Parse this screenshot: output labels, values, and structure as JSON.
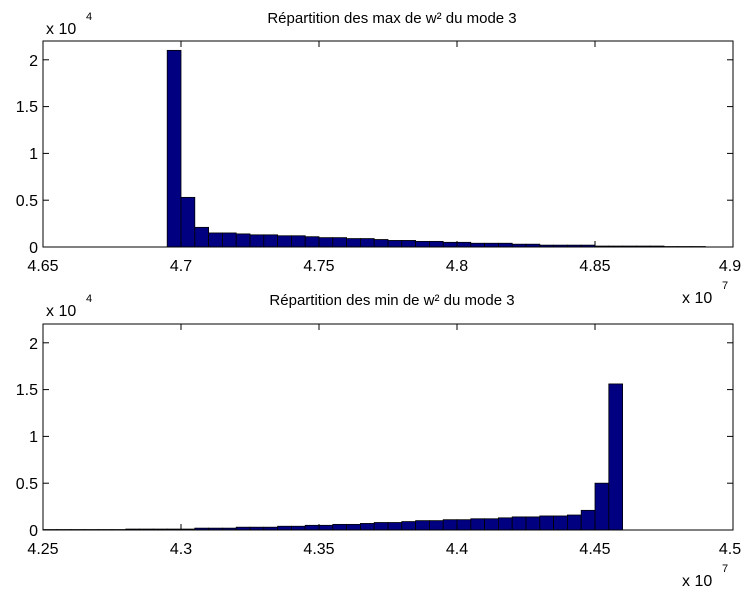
{
  "chart_data": [
    {
      "type": "bar",
      "title": "Répartition des max de w² du mode 3",
      "xlabel": "",
      "ylabel": "",
      "x_multiplier": "x 10",
      "x_exponent": "7",
      "y_multiplier": "x 10",
      "y_exponent": "4",
      "xlim": [
        4.65,
        4.9
      ],
      "ylim": [
        0,
        2.2
      ],
      "xticks": [
        "4.65",
        "4.7",
        "4.75",
        "4.8",
        "4.85",
        "4.9"
      ],
      "yticks": [
        "0",
        "0.5",
        "1",
        "1.5",
        "2"
      ],
      "grid": false,
      "color": "#000080",
      "bin_width": 0.005,
      "x": [
        4.6975,
        4.7025,
        4.7075,
        4.7125,
        4.7175,
        4.7225,
        4.7275,
        4.7325,
        4.7375,
        4.7425,
        4.7475,
        4.7525,
        4.7575,
        4.7625,
        4.7675,
        4.7725,
        4.7775,
        4.7825,
        4.7875,
        4.7925,
        4.7975,
        4.8025,
        4.8075,
        4.8125,
        4.8175,
        4.8225,
        4.8275,
        4.8325,
        4.8375,
        4.8425,
        4.8475,
        4.8525,
        4.8575,
        4.8625,
        4.8675,
        4.8725,
        4.8775,
        4.8825,
        4.8875
      ],
      "values": [
        2.1,
        0.53,
        0.21,
        0.15,
        0.15,
        0.14,
        0.13,
        0.13,
        0.12,
        0.12,
        0.11,
        0.1,
        0.1,
        0.09,
        0.09,
        0.08,
        0.07,
        0.07,
        0.06,
        0.06,
        0.05,
        0.05,
        0.04,
        0.04,
        0.04,
        0.03,
        0.03,
        0.02,
        0.02,
        0.02,
        0.02,
        0.01,
        0.01,
        0.01,
        0.01,
        0.01,
        0.005,
        0.005,
        0.005
      ]
    },
    {
      "type": "bar",
      "title": "Répartition des min de w² du mode 3",
      "xlabel": "",
      "ylabel": "",
      "x_multiplier": "x 10",
      "x_exponent": "7",
      "y_multiplier": "x 10",
      "y_exponent": "4",
      "xlim": [
        4.25,
        4.5
      ],
      "ylim": [
        0,
        2.2
      ],
      "xticks": [
        "4.25",
        "4.3",
        "4.35",
        "4.4",
        "4.45",
        "4.5"
      ],
      "yticks": [
        "0",
        "0.5",
        "1",
        "1.5",
        "2"
      ],
      "grid": false,
      "color": "#000080",
      "bin_width": 0.005,
      "x": [
        4.2525,
        4.2575,
        4.2625,
        4.2675,
        4.2725,
        4.2775,
        4.2825,
        4.2875,
        4.2925,
        4.2975,
        4.3025,
        4.3075,
        4.3125,
        4.3175,
        4.3225,
        4.3275,
        4.3325,
        4.3375,
        4.3425,
        4.3475,
        4.3525,
        4.3575,
        4.3625,
        4.3675,
        4.3725,
        4.3775,
        4.3825,
        4.3875,
        4.3925,
        4.3975,
        4.4025,
        4.4075,
        4.4125,
        4.4175,
        4.4225,
        4.4275,
        4.4325,
        4.4375,
        4.4425,
        4.4475,
        4.4525,
        4.4575
      ],
      "values": [
        0.005,
        0.005,
        0.005,
        0.005,
        0.005,
        0.005,
        0.01,
        0.01,
        0.01,
        0.01,
        0.01,
        0.02,
        0.02,
        0.02,
        0.03,
        0.03,
        0.03,
        0.04,
        0.04,
        0.05,
        0.05,
        0.06,
        0.06,
        0.07,
        0.08,
        0.08,
        0.09,
        0.1,
        0.1,
        0.11,
        0.11,
        0.12,
        0.12,
        0.13,
        0.14,
        0.14,
        0.15,
        0.15,
        0.16,
        0.21,
        0.5,
        1.56
      ]
    }
  ]
}
